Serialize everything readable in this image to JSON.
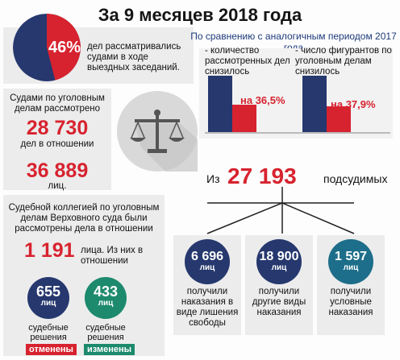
{
  "title": "За 9 месяцев 2018 года",
  "pie": {
    "percent": "46%",
    "caption": "дел рассматривались судами в ходе выездных заседаний.",
    "share": 0.46,
    "color_main": "#26386e",
    "color_share": "#d7232f"
  },
  "courts": {
    "label": "Судами по уголовным делам рассмотрено",
    "cases": "28 730",
    "cases_unit": "дел в отношении",
    "persons": "36 889",
    "persons_unit": "лиц."
  },
  "supreme": {
    "label": "Судебной коллегией по уголовным делам Верховного суда были рассмотрены дела в отношении",
    "count": "1 191",
    "count_unit": "лица. Из них в отношении",
    "cancelled": {
      "num": "655",
      "unit": "лиц",
      "caption": "судебные решения",
      "tag": "отменены"
    },
    "changed": {
      "num": "433",
      "unit": "лиц",
      "caption": "судебные решения",
      "tag": "изменены"
    }
  },
  "comparison": {
    "title": "По сравнению с аналогичным периодом 2017 года",
    "left_caption": "- количество рассмотренных дел снизилось",
    "left_pct": "на 36,5%",
    "right_caption": "- число фигурантов по уголовным делам снизилось",
    "right_pct": "на 37,9%"
  },
  "defendants": {
    "prefix": "Из",
    "total": "27 193",
    "unit": "подсудимых",
    "groups": [
      {
        "num": "6 696",
        "unit": "лиц",
        "caption": "получили наказания в виде лишения свободы"
      },
      {
        "num": "18 900",
        "unit": "лиц",
        "caption": "получили другие виды наказания"
      },
      {
        "num": "1 597",
        "unit": "лиц",
        "caption": "получили условные наказания"
      }
    ]
  },
  "colors": {
    "navy": "#26386e",
    "red": "#d7232f",
    "green": "#1d8a6d",
    "teal": "#1d6e8a"
  }
}
